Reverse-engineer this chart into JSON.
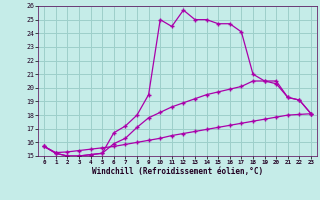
{
  "xlabel": "Windchill (Refroidissement éolien,°C)",
  "bg_color": "#c5ece8",
  "grid_color": "#9dcfca",
  "line_color": "#aa00aa",
  "xlim": [
    -0.5,
    23.5
  ],
  "ylim": [
    15,
    26
  ],
  "x_ticks": [
    0,
    1,
    2,
    3,
    4,
    5,
    6,
    7,
    8,
    9,
    10,
    11,
    12,
    13,
    14,
    15,
    16,
    17,
    18,
    19,
    20,
    21,
    22,
    23
  ],
  "y_ticks": [
    15,
    16,
    17,
    18,
    19,
    20,
    21,
    22,
    23,
    24,
    25,
    26
  ],
  "line1_x": [
    0,
    1,
    2,
    3,
    4,
    5,
    6,
    7,
    8,
    9,
    10,
    11,
    12,
    13,
    14,
    15,
    16,
    17,
    18,
    19,
    20,
    21,
    22,
    23
  ],
  "line1_y": [
    15.7,
    15.2,
    15.0,
    15.0,
    15.1,
    15.2,
    16.7,
    17.2,
    18.0,
    19.5,
    25.0,
    24.5,
    25.7,
    25.0,
    25.0,
    24.7,
    24.7,
    24.1,
    21.0,
    20.5,
    20.5,
    19.3,
    19.1,
    18.1
  ],
  "line2_x": [
    0,
    1,
    2,
    3,
    4,
    5,
    6,
    7,
    8,
    9,
    10,
    11,
    12,
    13,
    14,
    15,
    16,
    17,
    18,
    19,
    20,
    21,
    22,
    23
  ],
  "line2_y": [
    15.7,
    15.2,
    15.0,
    15.0,
    15.1,
    15.2,
    15.9,
    16.3,
    17.1,
    17.8,
    18.2,
    18.6,
    18.9,
    19.2,
    19.5,
    19.7,
    19.9,
    20.1,
    20.5,
    20.5,
    20.3,
    19.3,
    19.1,
    18.1
  ],
  "line3_x": [
    0,
    1,
    2,
    3,
    4,
    5,
    6,
    7,
    8,
    9,
    10,
    11,
    12,
    13,
    14,
    15,
    16,
    17,
    18,
    19,
    20,
    21,
    22,
    23
  ],
  "line3_y": [
    15.7,
    15.25,
    15.3,
    15.4,
    15.5,
    15.6,
    15.7,
    15.85,
    16.0,
    16.15,
    16.3,
    16.5,
    16.65,
    16.8,
    16.95,
    17.1,
    17.25,
    17.4,
    17.55,
    17.7,
    17.85,
    18.0,
    18.05,
    18.1
  ]
}
